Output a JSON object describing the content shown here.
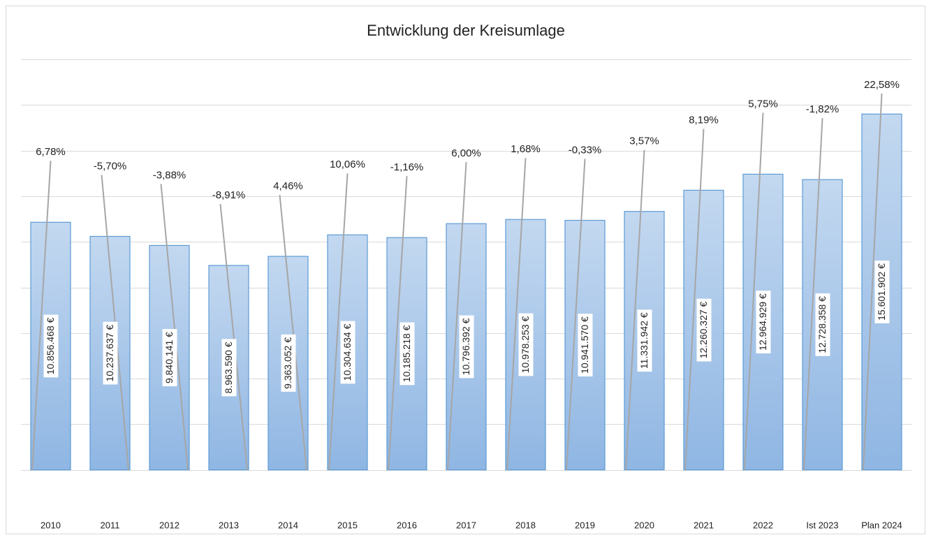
{
  "chart_data": {
    "type": "bar",
    "title": "Entwicklung  der Kreisumlage",
    "categories": [
      "2010",
      "2011",
      "2012",
      "2013",
      "2014",
      "2015",
      "2016",
      "2017",
      "2018",
      "2019",
      "2020",
      "2021",
      "2022",
      "Ist 2023",
      "Plan 2024"
    ],
    "series": [
      {
        "color": "#9dc0e8",
        "values": [
          10856468,
          10237637,
          9840141,
          8963590,
          9363052,
          10304634,
          10185218,
          10796392,
          10978253,
          10941570,
          11331942,
          12260327,
          12964929,
          12728358,
          15601902
        ],
        "value_labels": [
          "10.856.468 €",
          "10.237.637 €",
          "9.840.141 €",
          "8.963.590 €",
          "9.363.052 €",
          "10.304.634 €",
          "10.185.218 €",
          "10.796.392 €",
          "10.978.253 €",
          "10.941.570 €",
          "11.331.942 €",
          "12.260.327 €",
          "12.964.929 €",
          "12.728.358 €",
          "15.601.902 €"
        ]
      },
      {
        "color": "#a6a6a6",
        "values": [
          6.78,
          -5.7,
          -3.88,
          -8.91,
          4.46,
          10.06,
          -1.16,
          6.0,
          1.68,
          -0.33,
          3.57,
          8.19,
          5.75,
          -1.82,
          22.58
        ],
        "value_labels": [
          "6,78%",
          "-5,70%",
          "-3,88%",
          "-8,91%",
          "4,46%",
          "10,06%",
          "-1,16%",
          "6,00%",
          "1,68%",
          "-0,33%",
          "3,57%",
          "8,19%",
          "5,75%",
          "-1,82%",
          "22,58%"
        ]
      }
    ],
    "ylim": [
      -2000000,
      18000000
    ],
    "yticks": [
      0,
      2000000,
      4000000,
      6000000,
      8000000,
      10000000,
      12000000,
      14000000,
      16000000,
      18000000
    ],
    "grid": true
  }
}
